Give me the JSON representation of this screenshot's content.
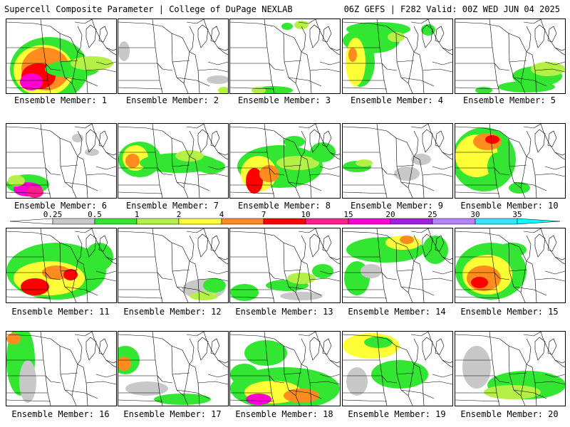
{
  "header": {
    "left_title": "Supercell Composite Parameter | College of DuPage NEXLAB",
    "right_title": "06Z GEFS | F282 Valid: 00Z WED JUN 04 2025"
  },
  "legend": {
    "ticks": [
      "0.25",
      "0.5",
      "1",
      "2",
      "4",
      "7",
      "10",
      "15",
      "20",
      "25",
      "30",
      "35"
    ],
    "colors": [
      "#ffffff",
      "#c8c8c8",
      "#32e632",
      "#b4f046",
      "#ffff37",
      "#ff8c1e",
      "#ff0000",
      "#ff1e8c",
      "#ff00d2",
      "#a01ee6",
      "#b482ff",
      "#32e6ff",
      "#00ffff"
    ]
  },
  "panels": [
    {
      "label": "Ensemble Member: 1"
    },
    {
      "label": "Ensemble Member: 2"
    },
    {
      "label": "Ensemble Member: 3"
    },
    {
      "label": "Ensemble Member: 4"
    },
    {
      "label": "Ensemble Member: 5"
    },
    {
      "label": "Ensemble Member: 6"
    },
    {
      "label": "Ensemble Member: 7"
    },
    {
      "label": "Ensemble Member: 8"
    },
    {
      "label": "Ensemble Member: 9"
    },
    {
      "label": "Ensemble Member: 10"
    },
    {
      "label": "Ensemble Member: 11"
    },
    {
      "label": "Ensemble Member: 12"
    },
    {
      "label": "Ensemble Member: 13"
    },
    {
      "label": "Ensemble Member: 14"
    },
    {
      "label": "Ensemble Member: 15"
    },
    {
      "label": "Ensemble Member: 16"
    },
    {
      "label": "Ensemble Member: 17"
    },
    {
      "label": "Ensemble Member: 18"
    },
    {
      "label": "Ensemble Member: 19"
    },
    {
      "label": "Ensemble Member: 20"
    }
  ]
}
